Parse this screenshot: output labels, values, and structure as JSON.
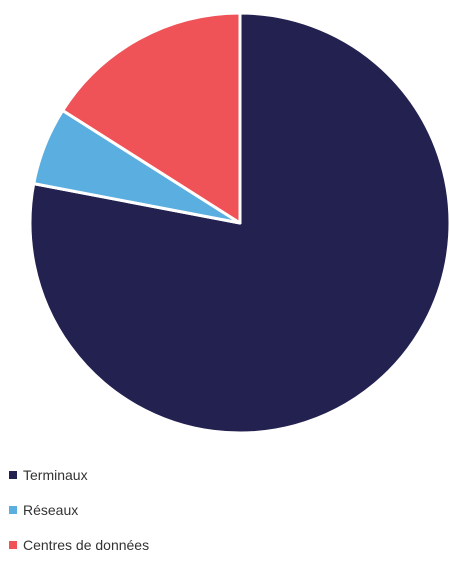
{
  "chart_data": {
    "type": "pie",
    "categories": [
      "Terminaux",
      "Réseaux",
      "Centres de données"
    ],
    "values": [
      78,
      6,
      16
    ],
    "colors": [
      "#23214f",
      "#5aaee0",
      "#ef5257"
    ],
    "legend_position": "bottom-left"
  }
}
